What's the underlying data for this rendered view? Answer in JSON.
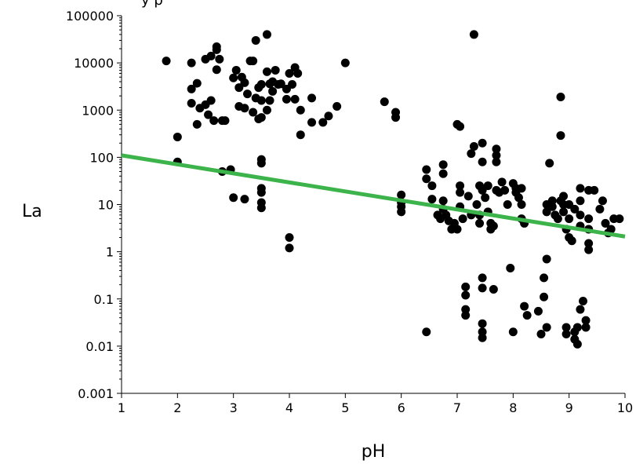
{
  "top_caption": "y p",
  "chart_data": {
    "type": "scatter",
    "xlabel": "pH",
    "ylabel": "La",
    "xlim": [
      1,
      10
    ],
    "ylim": [
      0.001,
      100000
    ],
    "y_scale": "log",
    "x_ticks": [
      "1",
      "2",
      "3",
      "4",
      "5",
      "6",
      "7",
      "8",
      "9",
      "10"
    ],
    "y_ticks": [
      "0.001",
      "0.01",
      "0.1",
      "1",
      "10",
      "100",
      "1000",
      "10000",
      "100000"
    ],
    "grid": false,
    "colors": {
      "points": "#000000",
      "fit_line": "#3cb44b"
    },
    "fit_line": {
      "x": [
        1,
        10
      ],
      "y": [
        110,
        2.1
      ]
    },
    "points": [
      [
        1.8,
        11000
      ],
      [
        2.0,
        270
      ],
      [
        2.0,
        80
      ],
      [
        2.25,
        10000
      ],
      [
        2.25,
        2800
      ],
      [
        2.25,
        1400
      ],
      [
        2.35,
        3700
      ],
      [
        2.35,
        500
      ],
      [
        2.4,
        1100
      ],
      [
        2.5,
        12000
      ],
      [
        2.5,
        1300
      ],
      [
        2.55,
        800
      ],
      [
        2.6,
        1600
      ],
      [
        2.6,
        14000
      ],
      [
        2.65,
        600
      ],
      [
        2.7,
        19000
      ],
      [
        2.7,
        7200
      ],
      [
        2.7,
        22000
      ],
      [
        2.75,
        12000
      ],
      [
        2.8,
        600
      ],
      [
        2.85,
        600
      ],
      [
        2.8,
        50
      ],
      [
        2.95,
        55
      ],
      [
        3.0,
        14
      ],
      [
        3.0,
        4800
      ],
      [
        3.05,
        7000
      ],
      [
        3.1,
        3000
      ],
      [
        3.1,
        1200
      ],
      [
        3.15,
        5000
      ],
      [
        3.2,
        3800
      ],
      [
        3.2,
        1100
      ],
      [
        3.2,
        13
      ],
      [
        3.25,
        2200
      ],
      [
        3.3,
        11000
      ],
      [
        3.35,
        900
      ],
      [
        3.35,
        11000
      ],
      [
        3.4,
        1800
      ],
      [
        3.4,
        30000
      ],
      [
        3.45,
        3000
      ],
      [
        3.45,
        650
      ],
      [
        3.5,
        700
      ],
      [
        3.5,
        1600
      ],
      [
        3.5,
        3500
      ],
      [
        3.5,
        90
      ],
      [
        3.5,
        75
      ],
      [
        3.5,
        22
      ],
      [
        3.5,
        18
      ],
      [
        3.5,
        11
      ],
      [
        3.5,
        8.5
      ],
      [
        3.6,
        40000
      ],
      [
        3.6,
        6500
      ],
      [
        3.6,
        1000
      ],
      [
        3.65,
        3600
      ],
      [
        3.65,
        1600
      ],
      [
        3.7,
        4000
      ],
      [
        3.7,
        2500
      ],
      [
        3.75,
        7000
      ],
      [
        3.8,
        3500
      ],
      [
        3.85,
        3600
      ],
      [
        3.95,
        2800
      ],
      [
        3.95,
        1700
      ],
      [
        4.0,
        6000
      ],
      [
        4.0,
        2.0
      ],
      [
        4.0,
        1.2
      ],
      [
        4.05,
        3500
      ],
      [
        4.1,
        8000
      ],
      [
        4.1,
        1700
      ],
      [
        4.15,
        6000
      ],
      [
        4.2,
        1000
      ],
      [
        4.2,
        300
      ],
      [
        4.4,
        1800
      ],
      [
        4.4,
        550
      ],
      [
        4.6,
        550
      ],
      [
        4.7,
        750
      ],
      [
        4.85,
        1200
      ],
      [
        5.0,
        10000
      ],
      [
        5.7,
        1500
      ],
      [
        5.9,
        900
      ],
      [
        5.9,
        700
      ],
      [
        6.0,
        16
      ],
      [
        6.0,
        11
      ],
      [
        6.0,
        9
      ],
      [
        6.0,
        7
      ],
      [
        6.45,
        55
      ],
      [
        6.45,
        35
      ],
      [
        6.45,
        0.02
      ],
      [
        6.55,
        25
      ],
      [
        6.55,
        13
      ],
      [
        6.65,
        6
      ],
      [
        6.7,
        5
      ],
      [
        6.75,
        70
      ],
      [
        6.75,
        45
      ],
      [
        6.75,
        12
      ],
      [
        6.75,
        8
      ],
      [
        6.8,
        6
      ],
      [
        6.85,
        4.5
      ],
      [
        6.9,
        3
      ],
      [
        6.95,
        4
      ],
      [
        7.0,
        3
      ],
      [
        7.0,
        500
      ],
      [
        7.05,
        450
      ],
      [
        7.05,
        25
      ],
      [
        7.05,
        18
      ],
      [
        7.05,
        9
      ],
      [
        7.1,
        5
      ],
      [
        7.15,
        0.18
      ],
      [
        7.15,
        0.12
      ],
      [
        7.15,
        0.06
      ],
      [
        7.15,
        0.045
      ],
      [
        7.2,
        15
      ],
      [
        7.25,
        120
      ],
      [
        7.25,
        6
      ],
      [
        7.3,
        40000
      ],
      [
        7.3,
        170
      ],
      [
        7.35,
        10
      ],
      [
        7.4,
        25
      ],
      [
        7.4,
        6
      ],
      [
        7.4,
        4
      ],
      [
        7.45,
        200
      ],
      [
        7.45,
        80
      ],
      [
        7.45,
        20
      ],
      [
        7.45,
        0.28
      ],
      [
        7.45,
        0.17
      ],
      [
        7.45,
        0.03
      ],
      [
        7.45,
        0.02
      ],
      [
        7.45,
        0.015
      ],
      [
        7.5,
        14
      ],
      [
        7.55,
        25
      ],
      [
        7.55,
        7
      ],
      [
        7.6,
        3
      ],
      [
        7.6,
        4
      ],
      [
        7.65,
        0.16
      ],
      [
        7.65,
        3.5
      ],
      [
        7.7,
        150
      ],
      [
        7.7,
        110
      ],
      [
        7.7,
        80
      ],
      [
        7.7,
        20
      ],
      [
        7.75,
        18
      ],
      [
        7.8,
        30
      ],
      [
        7.85,
        20
      ],
      [
        7.9,
        10
      ],
      [
        7.95,
        0.45
      ],
      [
        8.0,
        0.02
      ],
      [
        8.0,
        28
      ],
      [
        8.05,
        22
      ],
      [
        8.05,
        18
      ],
      [
        8.1,
        14
      ],
      [
        8.15,
        22
      ],
      [
        8.15,
        10
      ],
      [
        8.15,
        5
      ],
      [
        8.2,
        4
      ],
      [
        8.2,
        0.07
      ],
      [
        8.25,
        0.045
      ],
      [
        8.45,
        0.055
      ],
      [
        8.5,
        0.018
      ],
      [
        8.55,
        0.28
      ],
      [
        8.55,
        0.11
      ],
      [
        8.6,
        0.7
      ],
      [
        8.6,
        0.025
      ],
      [
        8.6,
        10
      ],
      [
        8.6,
        7
      ],
      [
        8.65,
        75
      ],
      [
        8.7,
        12
      ],
      [
        8.7,
        9
      ],
      [
        8.75,
        6
      ],
      [
        8.8,
        5
      ],
      [
        8.85,
        1900
      ],
      [
        8.85,
        290
      ],
      [
        8.85,
        12
      ],
      [
        8.9,
        15
      ],
      [
        8.9,
        10
      ],
      [
        8.9,
        7
      ],
      [
        8.95,
        0.025
      ],
      [
        8.95,
        0.018
      ],
      [
        8.95,
        3
      ],
      [
        9.0,
        10
      ],
      [
        9.0,
        5
      ],
      [
        9.0,
        2
      ],
      [
        9.05,
        1.7
      ],
      [
        9.1,
        8
      ],
      [
        9.1,
        0.02
      ],
      [
        9.1,
        0.014
      ],
      [
        9.15,
        0.011
      ],
      [
        9.15,
        0.025
      ],
      [
        9.2,
        22
      ],
      [
        9.2,
        12
      ],
      [
        9.2,
        6
      ],
      [
        9.2,
        3.5
      ],
      [
        9.2,
        0.06
      ],
      [
        9.25,
        0.09
      ],
      [
        9.3,
        0.035
      ],
      [
        9.3,
        0.025
      ],
      [
        9.35,
        20
      ],
      [
        9.35,
        5
      ],
      [
        9.35,
        3
      ],
      [
        9.35,
        1.5
      ],
      [
        9.35,
        1.1
      ],
      [
        9.45,
        20
      ],
      [
        9.55,
        8
      ],
      [
        9.6,
        12
      ],
      [
        9.65,
        4
      ],
      [
        9.7,
        2.5
      ],
      [
        9.75,
        3
      ],
      [
        9.8,
        5
      ],
      [
        9.9,
        5
      ]
    ]
  }
}
